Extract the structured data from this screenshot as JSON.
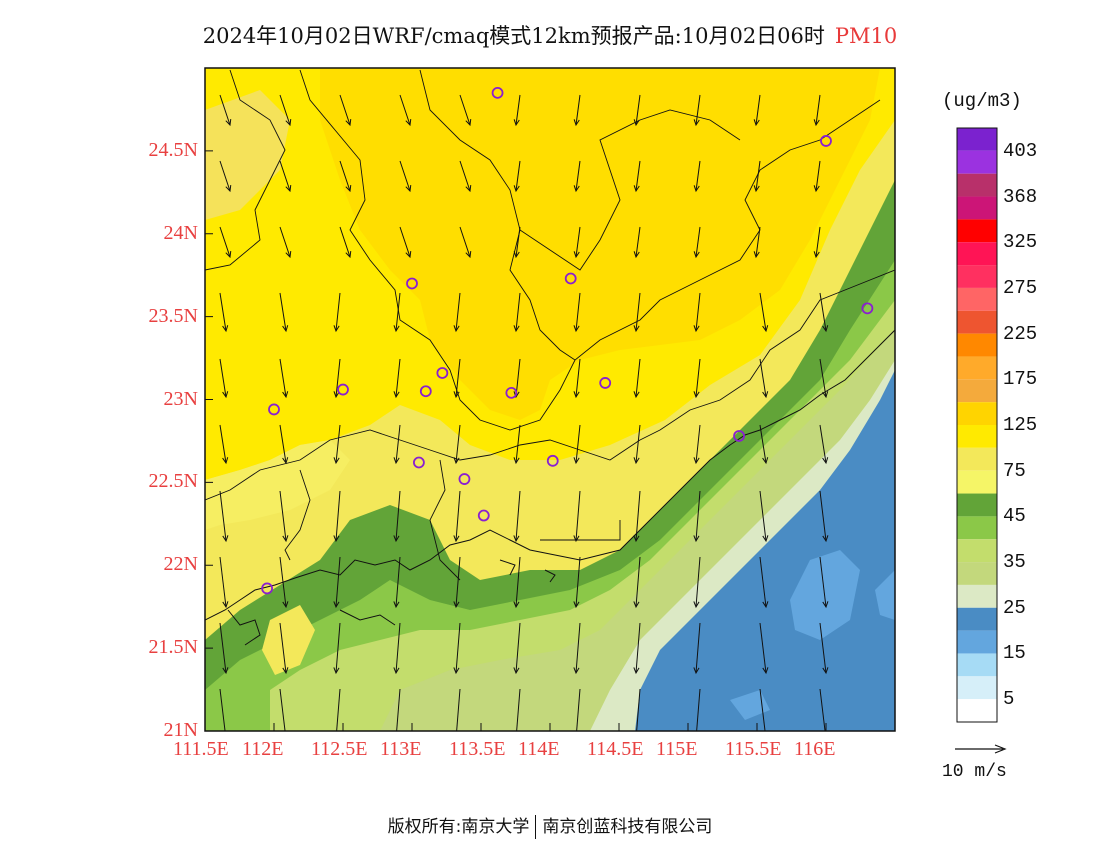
{
  "title": {
    "main": "2024年10月02日WRF/cmaq模式12km预报产品:10月02日06时",
    "pollutant": "PM10"
  },
  "axes": {
    "lat_labels": [
      "24.5N",
      "24N",
      "23.5N",
      "23N",
      "22.5N",
      "22N",
      "21.5N",
      "21N"
    ],
    "lat_values": [
      24.5,
      24,
      23.5,
      23,
      22.5,
      22,
      21.5,
      21
    ],
    "lon_labels": [
      "111.5E",
      "112E",
      "112.5E",
      "113E",
      "113.5E",
      "114E",
      "114.5E",
      "115E",
      "115.5E",
      "116E"
    ],
    "lon_values": [
      111.5,
      112,
      112.5,
      113,
      113.5,
      114,
      114.5,
      115,
      115.5,
      116
    ]
  },
  "colorbar": {
    "unit": "(ug/m3)",
    "labels": [
      "403",
      "368",
      "325",
      "275",
      "225",
      "175",
      "125",
      "75",
      "45",
      "35",
      "25",
      "15",
      "5"
    ],
    "colors": [
      "#7b22cf",
      "#9b32e0",
      "#b8306a",
      "#cc1577",
      "#ff0000",
      "#ff1455",
      "#ff3060",
      "#ff6565",
      "#ee5530",
      "#ff8800",
      "#ffaa2a",
      "#f4aa3c",
      "#ffd400",
      "#ffea00",
      "#f3e85a",
      "#f5f567",
      "#62a438",
      "#8bc848",
      "#c3dd6c",
      "#c3d87c",
      "#dce9c5",
      "#4a8cc4",
      "#63a6de",
      "#a6dbf5",
      "#d6eff9",
      "#ffffff"
    ]
  },
  "wind_reference": {
    "label": "10 m/s"
  },
  "footer": {
    "copyright": "版权所有:南京大学",
    "company": "南京创蓝科技有限公司"
  }
}
